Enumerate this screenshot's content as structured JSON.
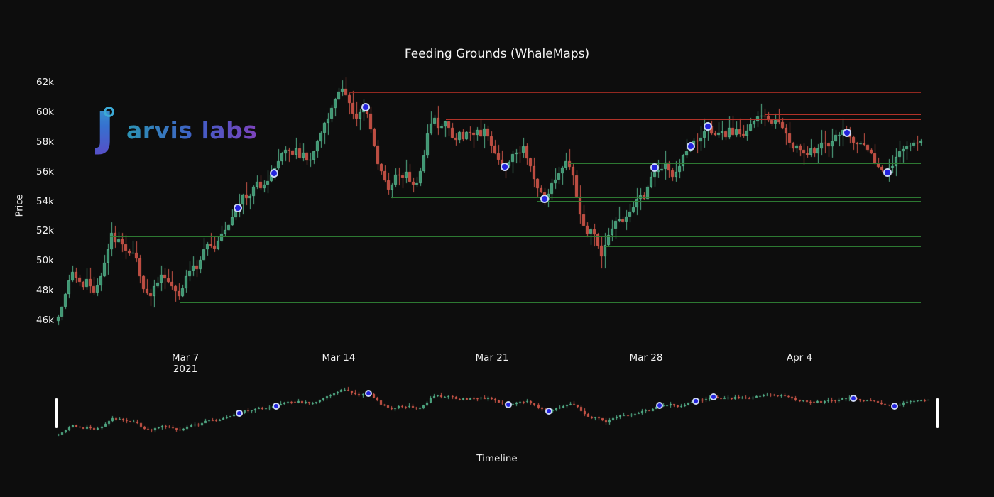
{
  "title": "Feeding Grounds (WhaleMaps)",
  "watermark": {
    "letter_j": "ȷ",
    "rest": "arvis labs"
  },
  "axes": {
    "y_label": "Price",
    "x_label": "Timeline",
    "y_ticks": [
      {
        "label": "62k",
        "value": 62
      },
      {
        "label": "60k",
        "value": 60
      },
      {
        "label": "58k",
        "value": 58
      },
      {
        "label": "56k",
        "value": 56
      },
      {
        "label": "54k",
        "value": 54
      },
      {
        "label": "52k",
        "value": 52
      },
      {
        "label": "50k",
        "value": 50
      },
      {
        "label": "48k",
        "value": 48
      },
      {
        "label": "46k",
        "value": 46
      }
    ],
    "x_ticks": [
      {
        "label": "Mar 7",
        "sub": "2021",
        "x": 261
      },
      {
        "label": "Mar 14",
        "x": 477
      },
      {
        "label": "Mar 21",
        "x": 693
      },
      {
        "label": "Mar 28",
        "x": 910
      },
      {
        "label": "Apr 4",
        "x": 1126
      }
    ]
  },
  "colors": {
    "background": "#0d0d0d",
    "up_fill": "#3c9571",
    "up_line": "#56b38c",
    "down_fill": "#bc4a40",
    "down_line": "#d3594b",
    "support_line": "#2f7f35",
    "resistance_line": "#bb352a",
    "resistance_line_dark": "#9a2a22",
    "marker_fill": "#2323dd",
    "marker_border": "#ccd6f2",
    "text": "#f2f2f2"
  },
  "chart_data": {
    "type": "candlestick",
    "title": "Feeding Grounds (WhaleMaps)",
    "xlabel": "Timeline",
    "ylabel": "Price",
    "ylim_k": [
      45.2,
      62.6
    ],
    "x_tick_dates": [
      "Mar 7 2021",
      "Mar 14",
      "Mar 21",
      "Mar 28",
      "Apr 4"
    ],
    "grid": false,
    "legend": false,
    "has_range_slider": true,
    "price_path_k": [
      [
        80,
        46.0
      ],
      [
        86,
        46.8
      ],
      [
        92,
        47.9
      ],
      [
        98,
        48.9
      ],
      [
        104,
        49.3
      ],
      [
        110,
        48.6
      ],
      [
        116,
        48.3
      ],
      [
        122,
        48.9
      ],
      [
        128,
        48.2
      ],
      [
        134,
        47.9
      ],
      [
        140,
        48.8
      ],
      [
        146,
        49.6
      ],
      [
        152,
        50.8
      ],
      [
        158,
        52.2
      ],
      [
        163,
        51.2
      ],
      [
        168,
        51.7
      ],
      [
        174,
        51.0
      ],
      [
        180,
        50.3
      ],
      [
        186,
        50.8
      ],
      [
        192,
        50.1
      ],
      [
        198,
        48.9
      ],
      [
        204,
        48.0
      ],
      [
        210,
        47.6
      ],
      [
        216,
        48.2
      ],
      [
        222,
        48.6
      ],
      [
        228,
        49.2
      ],
      [
        234,
        48.8
      ],
      [
        240,
        48.5
      ],
      [
        247,
        48.0
      ],
      [
        253,
        47.5
      ],
      [
        259,
        48.4
      ],
      [
        265,
        49.3
      ],
      [
        271,
        49.8
      ],
      [
        277,
        49.4
      ],
      [
        283,
        50.3
      ],
      [
        289,
        51.0
      ],
      [
        295,
        51.3
      ],
      [
        301,
        50.7
      ],
      [
        307,
        51.4
      ],
      [
        313,
        51.9
      ],
      [
        319,
        52.2
      ],
      [
        325,
        52.7
      ],
      [
        331,
        53.3
      ],
      [
        337,
        53.9
      ],
      [
        343,
        54.5
      ],
      [
        349,
        54.1
      ],
      [
        355,
        54.8
      ],
      [
        361,
        55.3
      ],
      [
        367,
        54.9
      ],
      [
        373,
        55.2
      ],
      [
        379,
        55.7
      ],
      [
        386,
        56.1
      ],
      [
        392,
        56.6
      ],
      [
        398,
        57.2
      ],
      [
        404,
        57.6
      ],
      [
        410,
        57.1
      ],
      [
        416,
        57.7
      ],
      [
        422,
        56.9
      ],
      [
        428,
        57.4
      ],
      [
        434,
        56.6
      ],
      [
        440,
        57.2
      ],
      [
        446,
        57.9
      ],
      [
        452,
        58.6
      ],
      [
        458,
        59.3
      ],
      [
        464,
        60.0
      ],
      [
        470,
        60.8
      ],
      [
        476,
        61.4
      ],
      [
        481,
        61.7
      ],
      [
        486,
        61.2
      ],
      [
        491,
        60.7
      ],
      [
        496,
        60.0
      ],
      [
        502,
        59.7
      ],
      [
        508,
        60.1
      ],
      [
        514,
        60.4
      ],
      [
        519,
        59.6
      ],
      [
        525,
        58.3
      ],
      [
        531,
        56.8
      ],
      [
        537,
        56.1
      ],
      [
        543,
        55.2
      ],
      [
        548,
        54.6
      ],
      [
        554,
        55.5
      ],
      [
        560,
        56.1
      ],
      [
        566,
        55.6
      ],
      [
        572,
        55.9
      ],
      [
        578,
        55.4
      ],
      [
        584,
        55.0
      ],
      [
        590,
        55.6
      ],
      [
        596,
        56.9
      ],
      [
        602,
        58.5
      ],
      [
        608,
        59.4
      ],
      [
        613,
        59.7
      ],
      [
        618,
        58.8
      ],
      [
        624,
        59.1
      ],
      [
        629,
        59.4
      ],
      [
        635,
        58.4
      ],
      [
        641,
        58.0
      ],
      [
        647,
        58.7
      ],
      [
        653,
        58.2
      ],
      [
        659,
        58.8
      ],
      [
        665,
        58.3
      ],
      [
        671,
        58.9
      ],
      [
        677,
        58.5
      ],
      [
        683,
        59.0
      ],
      [
        689,
        58.3
      ],
      [
        695,
        57.5
      ],
      [
        701,
        57.0
      ],
      [
        707,
        56.6
      ],
      [
        713,
        56.3
      ],
      [
        719,
        57.0
      ],
      [
        725,
        57.5
      ],
      [
        731,
        57.1
      ],
      [
        737,
        57.7
      ],
      [
        743,
        56.9
      ],
      [
        749,
        56.0
      ],
      [
        755,
        55.2
      ],
      [
        761,
        54.6
      ],
      [
        767,
        54.1
      ],
      [
        773,
        54.8
      ],
      [
        779,
        55.4
      ],
      [
        785,
        55.9
      ],
      [
        791,
        56.3
      ],
      [
        797,
        56.7
      ],
      [
        803,
        56.3
      ],
      [
        808,
        55.5
      ],
      [
        813,
        54.2
      ],
      [
        818,
        52.9
      ],
      [
        823,
        52.2
      ],
      [
        828,
        51.9
      ],
      [
        833,
        52.4
      ],
      [
        838,
        51.7
      ],
      [
        843,
        50.9
      ],
      [
        847,
        50.3
      ],
      [
        852,
        51.0
      ],
      [
        858,
        51.8
      ],
      [
        864,
        52.4
      ],
      [
        870,
        52.9
      ],
      [
        876,
        52.5
      ],
      [
        882,
        53.1
      ],
      [
        888,
        53.5
      ],
      [
        894,
        53.9
      ],
      [
        900,
        54.5
      ],
      [
        906,
        54.1
      ],
      [
        912,
        55.0
      ],
      [
        918,
        55.8
      ],
      [
        924,
        56.3
      ],
      [
        930,
        56.0
      ],
      [
        936,
        56.6
      ],
      [
        942,
        56.1
      ],
      [
        948,
        55.5
      ],
      [
        954,
        56.2
      ],
      [
        960,
        56.8
      ],
      [
        966,
        57.3
      ],
      [
        973,
        57.8
      ],
      [
        979,
        58.2
      ],
      [
        985,
        58.0
      ],
      [
        991,
        58.6
      ],
      [
        997,
        59.1
      ],
      [
        1003,
        58.6
      ],
      [
        1009,
        58.3
      ],
      [
        1015,
        58.8
      ],
      [
        1021,
        58.4
      ],
      [
        1027,
        59.0
      ],
      [
        1033,
        58.5
      ],
      [
        1039,
        58.9
      ],
      [
        1045,
        58.5
      ],
      [
        1051,
        58.8
      ],
      [
        1057,
        59.1
      ],
      [
        1063,
        59.5
      ],
      [
        1069,
        59.8
      ],
      [
        1075,
        60.0
      ],
      [
        1081,
        59.7
      ],
      [
        1087,
        59.4
      ],
      [
        1093,
        59.7
      ],
      [
        1099,
        59.3
      ],
      [
        1105,
        58.7
      ],
      [
        1111,
        58.2
      ],
      [
        1117,
        57.7
      ],
      [
        1123,
        58.0
      ],
      [
        1129,
        57.4
      ],
      [
        1135,
        57.1
      ],
      [
        1141,
        57.5
      ],
      [
        1147,
        57.2
      ],
      [
        1153,
        57.7
      ],
      [
        1159,
        58.0
      ],
      [
        1165,
        57.6
      ],
      [
        1171,
        58.1
      ],
      [
        1177,
        58.4
      ],
      [
        1183,
        58.7
      ],
      [
        1189,
        58.8
      ],
      [
        1195,
        58.5
      ],
      [
        1201,
        58.1
      ],
      [
        1207,
        57.9
      ],
      [
        1213,
        58.1
      ],
      [
        1219,
        57.6
      ],
      [
        1225,
        57.3
      ],
      [
        1231,
        56.8
      ],
      [
        1237,
        56.4
      ],
      [
        1243,
        56.1
      ],
      [
        1249,
        56.0
      ],
      [
        1255,
        56.4
      ],
      [
        1261,
        56.9
      ],
      [
        1267,
        57.3
      ],
      [
        1273,
        57.6
      ],
      [
        1279,
        57.8
      ],
      [
        1285,
        58.0
      ],
      [
        1291,
        57.9
      ],
      [
        1297,
        58.0
      ]
    ],
    "levels_k": [
      {
        "price_k": 61.4,
        "x_start": 492,
        "kind": "resistance",
        "color": "#9a2a22"
      },
      {
        "price_k": 59.9,
        "x_start": 1077,
        "kind": "resistance",
        "color": "#bb352a"
      },
      {
        "price_k": 59.55,
        "x_start": 628,
        "kind": "resistance",
        "color": "#bb352a"
      },
      {
        "price_k": 56.6,
        "x_start": 802,
        "kind": "support",
        "color": "#2f7f35"
      },
      {
        "price_k": 54.3,
        "x_start": 550,
        "kind": "support",
        "color": "#2f7f35"
      },
      {
        "price_k": 54.05,
        "x_start": 757,
        "kind": "support",
        "color": "#2f7f35"
      },
      {
        "price_k": 51.7,
        "x_start": 155,
        "kind": "support",
        "color": "#2f7f35"
      },
      {
        "price_k": 51.0,
        "x_start": 852,
        "kind": "support",
        "color": "#2f7f35"
      },
      {
        "price_k": 47.25,
        "x_start": 253,
        "kind": "support",
        "color": "#2f7f35"
      }
    ],
    "whale_markers_k": [
      {
        "x": 335,
        "price_k": 53.6
      },
      {
        "x": 386,
        "price_k": 55.95
      },
      {
        "x": 515,
        "price_k": 60.4
      },
      {
        "x": 711,
        "price_k": 56.35
      },
      {
        "x": 767,
        "price_k": 54.2
      },
      {
        "x": 922,
        "price_k": 56.3
      },
      {
        "x": 973,
        "price_k": 57.75
      },
      {
        "x": 997,
        "price_k": 59.1
      },
      {
        "x": 1193,
        "price_k": 58.65
      },
      {
        "x": 1250,
        "price_k": 56.0
      }
    ]
  }
}
